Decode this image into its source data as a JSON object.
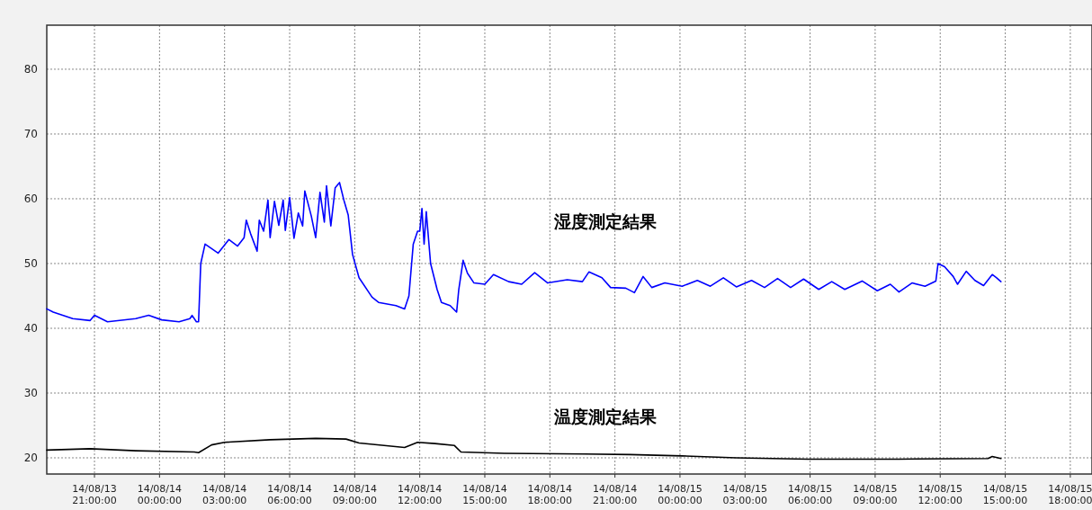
{
  "chart_data": {
    "type": "line",
    "xlim": [
      "--08-13T18:48",
      "--08-15T19:00"
    ],
    "ylim": [
      17.5,
      86.8
    ],
    "xticks": [
      {
        "value": "--08-13T21:00",
        "label": "14/08/13 21:00:00"
      },
      {
        "value": "--08-14T00:00",
        "label": "14/08/14 00:00:00"
      },
      {
        "value": "--08-14T03:00",
        "label": "14/08/14 03:00:00"
      },
      {
        "value": "--08-14T06:00",
        "label": "14/08/14 06:00:00"
      },
      {
        "value": "--08-14T09:00",
        "label": "14/08/14 09:00:00"
      },
      {
        "value": "--08-14T12:00",
        "label": "14/08/14 12:00:00"
      },
      {
        "value": "--08-14T15:00",
        "label": "14/08/14 15:00:00"
      },
      {
        "value": "--08-14T18:00",
        "label": "14/08/14 18:00:00"
      },
      {
        "value": "--08-14T21:00",
        "label": "14/08/14 21:00:00"
      },
      {
        "value": "--08-15T00:00",
        "label": "14/08/15 00:00:00"
      },
      {
        "value": "--08-15T03:00",
        "label": "14/08/15 03:00:00"
      },
      {
        "value": "--08-15T06:00",
        "label": "14/08/15 06:00:00"
      },
      {
        "value": "--08-15T09:00",
        "label": "14/08/15 09:00:00"
      },
      {
        "value": "--08-15T12:00",
        "label": "14/08/15 12:00:00"
      },
      {
        "value": "--08-15T15:00",
        "label": "14/08/15 15:00:00"
      },
      {
        "value": "--08-15T18:00",
        "label": "14/08/15 18:00:00"
      }
    ],
    "yticks": [
      20,
      30,
      40,
      50,
      60,
      70,
      80
    ],
    "grid": true,
    "series": [
      {
        "name": "湿度測定結果",
        "color": "#0000ff",
        "x": [
          "--08-13T18:48",
          "--08-13T19:06",
          "--08-13T20:00",
          "--08-13T20:48",
          "--08-13T21:00",
          "--08-13T21:36",
          "--08-13T22:54",
          "--08-13T23:30",
          "--08-14T00:06",
          "--08-14T00:54",
          "--08-14T01:24",
          "--08-14T01:30",
          "--08-14T01:42",
          "--08-14T01:48",
          "--08-14T01:54",
          "--08-14T02:06",
          "--08-14T02:42",
          "--08-14T03:12",
          "--08-14T03:36",
          "--08-14T03:54",
          "--08-14T04:00",
          "--08-14T04:12",
          "--08-14T04:30",
          "--08-14T04:36",
          "--08-14T04:48",
          "--08-14T05:00",
          "--08-14T05:06",
          "--08-14T05:18",
          "--08-14T05:30",
          "--08-14T05:42",
          "--08-14T05:48",
          "--08-14T06:00",
          "--08-14T06:12",
          "--08-14T06:24",
          "--08-14T06:36",
          "--08-14T06:42",
          "--08-14T07:00",
          "--08-14T07:12",
          "--08-14T07:24",
          "--08-14T07:36",
          "--08-14T07:42",
          "--08-14T07:54",
          "--08-14T08:06",
          "--08-14T08:18",
          "--08-14T08:30",
          "--08-14T08:42",
          "--08-14T08:54",
          "--08-14T09:12",
          "--08-14T09:48",
          "--08-14T10:06",
          "--08-14T10:54",
          "--08-14T11:18",
          "--08-14T11:30",
          "--08-14T11:42",
          "--08-14T11:54",
          "--08-14T12:00",
          "--08-14T12:06",
          "--08-14T12:12",
          "--08-14T12:18",
          "--08-14T12:30",
          "--08-14T12:48",
          "--08-14T13:00",
          "--08-14T13:24",
          "--08-14T13:42",
          "--08-14T13:48",
          "--08-14T14:00",
          "--08-14T14:12",
          "--08-14T14:30",
          "--08-14T15:00",
          "--08-14T15:24",
          "--08-14T16:06",
          "--08-14T16:42",
          "--08-14T17:18",
          "--08-14T17:54",
          "--08-14T18:48",
          "--08-14T19:30",
          "--08-14T19:48",
          "--08-14T20:24",
          "--08-14T20:48",
          "--08-14T21:30",
          "--08-14T21:54",
          "--08-14T22:18",
          "--08-14T22:42",
          "--08-14T23:18",
          "--08-15T00:06",
          "--08-15T00:48",
          "--08-15T01:24",
          "--08-15T02:00",
          "--08-15T02:36",
          "--08-15T03:18",
          "--08-15T03:54",
          "--08-15T04:30",
          "--08-15T05:06",
          "--08-15T05:42",
          "--08-15T06:24",
          "--08-15T07:00",
          "--08-15T07:36",
          "--08-15T08:24",
          "--08-15T09:06",
          "--08-15T09:42",
          "--08-15T10:06",
          "--08-15T10:42",
          "--08-15T11:18",
          "--08-15T11:48",
          "--08-15T11:54",
          "--08-15T12:12",
          "--08-15T12:36",
          "--08-15T12:48",
          "--08-15T13:12",
          "--08-15T13:36",
          "--08-15T14:00",
          "--08-15T14:24",
          "--08-15T14:36",
          "--08-15T14:48"
        ],
        "values": [
          43.0,
          42.5,
          41.5,
          41.2,
          42.0,
          41.0,
          41.5,
          42.0,
          41.3,
          41.0,
          41.5,
          42.0,
          41.0,
          41.0,
          50.0,
          53.0,
          51.6,
          53.7,
          52.7,
          54.0,
          56.7,
          54.6,
          51.9,
          56.7,
          55.0,
          59.8,
          54.0,
          59.6,
          55.9,
          59.8,
          55.1,
          60.2,
          53.9,
          57.8,
          55.8,
          61.2,
          57.3,
          54.0,
          61.0,
          56.4,
          62.0,
          55.8,
          61.7,
          62.5,
          59.8,
          57.5,
          51.4,
          47.8,
          44.8,
          44.0,
          43.5,
          43.0,
          45.0,
          53.0,
          55.0,
          55.0,
          58.5,
          53.0,
          58.0,
          50.0,
          46.0,
          44.0,
          43.5,
          42.5,
          46.0,
          50.5,
          48.5,
          47.0,
          46.8,
          48.3,
          47.2,
          46.8,
          48.6,
          47.0,
          47.5,
          47.2,
          48.7,
          47.8,
          46.3,
          46.2,
          45.5,
          48.0,
          46.3,
          47.0,
          46.5,
          47.4,
          46.5,
          47.8,
          46.4,
          47.4,
          46.3,
          47.7,
          46.3,
          47.6,
          46.0,
          47.2,
          46.0,
          47.3,
          45.8,
          46.8,
          45.6,
          47.0,
          46.5,
          47.3,
          50.0,
          49.5,
          48.0,
          46.8,
          48.8,
          47.4,
          46.6,
          48.3,
          47.8,
          47.2
        ]
      },
      {
        "name": "温度測定結果",
        "color": "#000000",
        "x": [
          "--08-13T18:48",
          "--08-13T20:48",
          "--08-13T22:54",
          "--08-14T01:36",
          "--08-14T01:48",
          "--08-14T02:24",
          "--08-14T03:00",
          "--08-14T05:06",
          "--08-14T07:12",
          "--08-14T08:36",
          "--08-14T09:12",
          "--08-14T11:18",
          "--08-14T11:54",
          "--08-14T12:42",
          "--08-14T13:36",
          "--08-14T13:54",
          "--08-14T15:54",
          "--08-14T19:36",
          "--08-14T21:42",
          "--08-15T00:06",
          "--08-15T02:36",
          "--08-15T05:54",
          "--08-15T10:06",
          "--08-15T14:12",
          "--08-15T14:24",
          "--08-15T14:48"
        ],
        "values": [
          21.2,
          21.4,
          21.1,
          20.9,
          20.8,
          22.0,
          22.4,
          22.8,
          23.0,
          22.9,
          22.3,
          21.6,
          22.4,
          22.2,
          21.9,
          20.9,
          20.7,
          20.6,
          20.5,
          20.3,
          20.0,
          19.8,
          19.8,
          19.9,
          20.2,
          19.9
        ]
      }
    ]
  }
}
